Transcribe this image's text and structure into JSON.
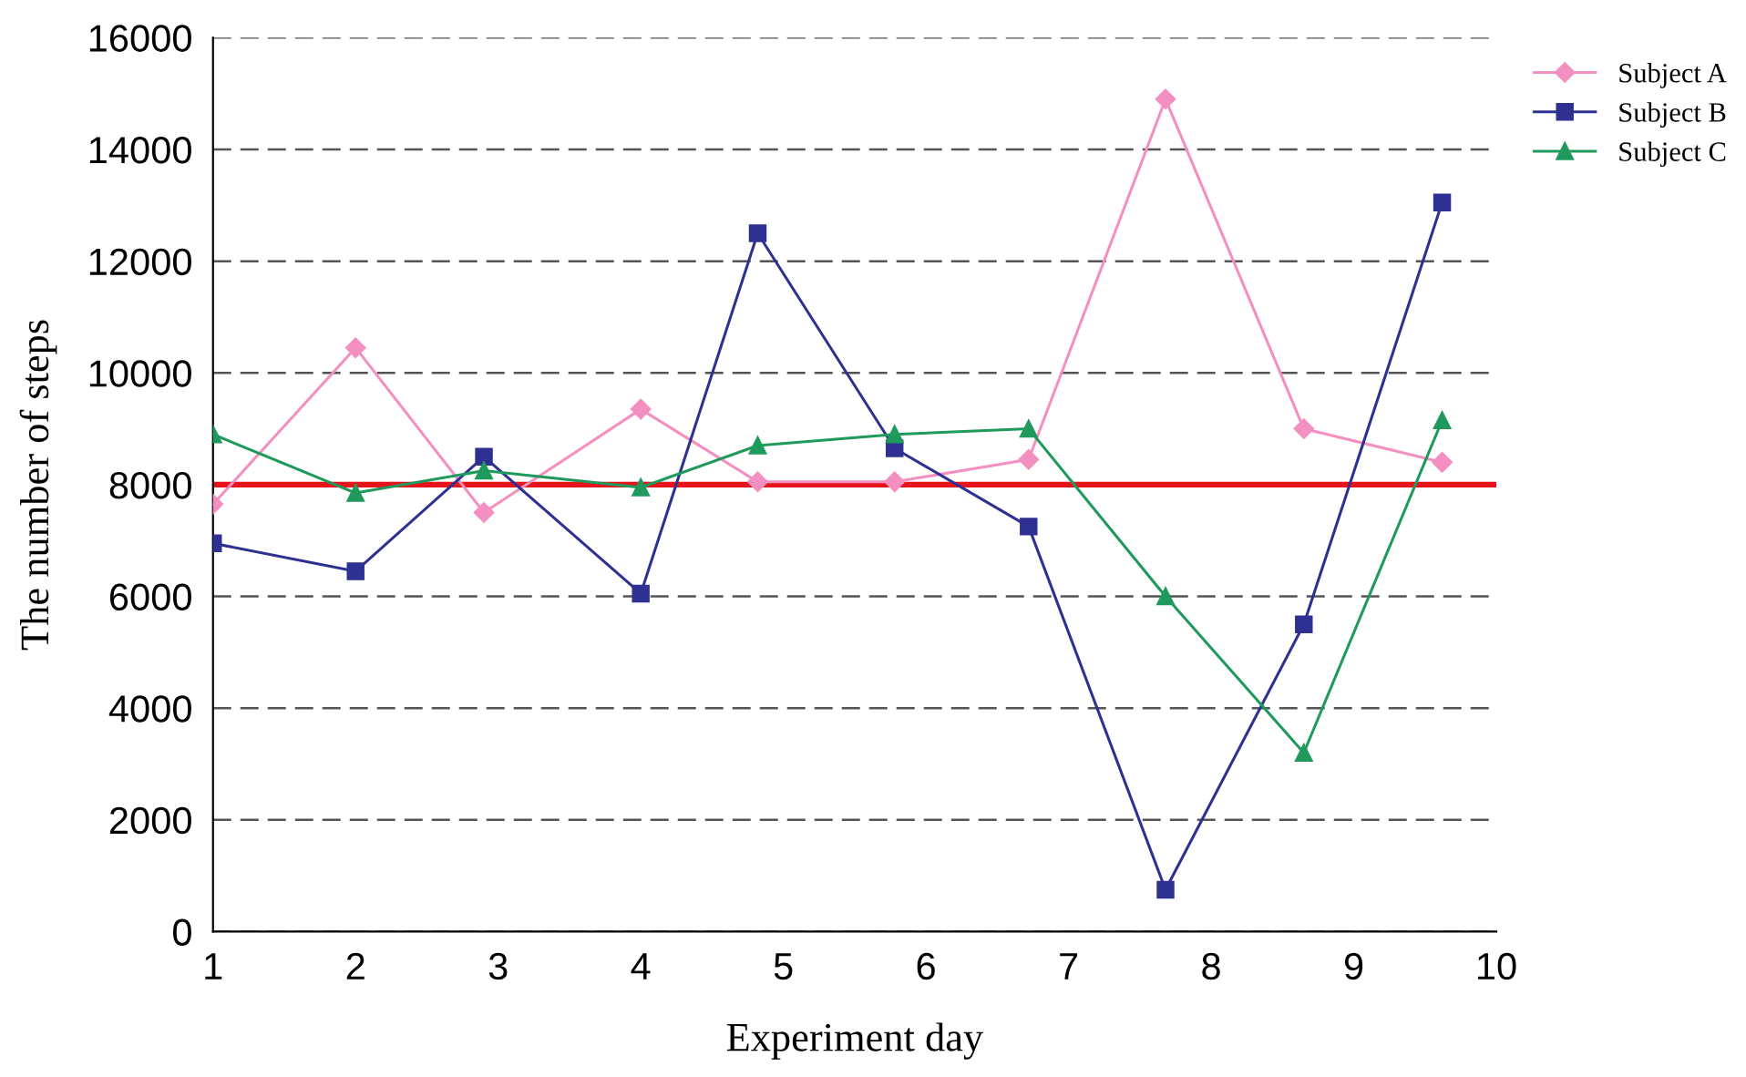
{
  "chart_data": {
    "type": "line",
    "xlabel": "Experiment day",
    "ylabel": "The number of steps",
    "x": [
      1,
      2,
      2.9,
      4,
      4.82,
      5.78,
      6.72,
      7.68,
      8.65,
      9.62
    ],
    "series": [
      {
        "name": "Subject A",
        "color": "#f48fc1",
        "marker": "diamond",
        "values": [
          7650,
          10450,
          7500,
          9350,
          8050,
          8050,
          8450,
          14900,
          9000,
          8400
        ]
      },
      {
        "name": "Subject B",
        "color": "#2e3192",
        "marker": "square",
        "values": [
          6950,
          6450,
          8500,
          6050,
          12500,
          8650,
          7250,
          750,
          5500,
          13050
        ]
      },
      {
        "name": "Subject C",
        "color": "#1f9a5c",
        "marker": "triangle",
        "values": [
          8900,
          7850,
          8250,
          7950,
          8700,
          8900,
          9000,
          6000,
          3200,
          9150
        ]
      }
    ],
    "xlim": [
      1,
      10
    ],
    "xticks": [
      1,
      2,
      3,
      4,
      5,
      6,
      7,
      8,
      9,
      10
    ],
    "ylim": [
      0,
      16000
    ],
    "yticks": [
      0,
      2000,
      4000,
      6000,
      8000,
      10000,
      12000,
      14000,
      16000
    ],
    "ref_lines": [
      {
        "axis": "y",
        "value": 8000,
        "color": "#e8141c",
        "line_style": "solid"
      }
    ],
    "grid": "y",
    "legend": "top right",
    "line_style": "solid"
  }
}
